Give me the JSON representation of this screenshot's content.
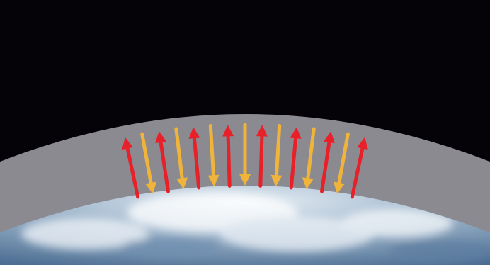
{
  "colors": {
    "space": "#050308",
    "atmosphere": "#8a8a90",
    "earth_light": "#e6eef4",
    "earth_mid": "#9fb6cc",
    "earth_dark": "#4d6f93",
    "upward_arrow": "#e8202a",
    "downward_arrow": "#f0b43a"
  },
  "arrows": [
    {
      "name": "arrow-up-1",
      "direction": "up",
      "color": "upward_arrow"
    },
    {
      "name": "arrow-down-1",
      "direction": "down",
      "color": "downward_arrow"
    },
    {
      "name": "arrow-up-2",
      "direction": "up",
      "color": "upward_arrow"
    },
    {
      "name": "arrow-down-2",
      "direction": "down",
      "color": "downward_arrow"
    },
    {
      "name": "arrow-up-3",
      "direction": "up",
      "color": "upward_arrow"
    },
    {
      "name": "arrow-down-3",
      "direction": "down",
      "color": "downward_arrow"
    },
    {
      "name": "arrow-up-4",
      "direction": "up",
      "color": "upward_arrow"
    },
    {
      "name": "arrow-down-4",
      "direction": "down",
      "color": "downward_arrow"
    },
    {
      "name": "arrow-up-5",
      "direction": "up",
      "color": "upward_arrow"
    },
    {
      "name": "arrow-down-5",
      "direction": "down",
      "color": "downward_arrow"
    },
    {
      "name": "arrow-up-6",
      "direction": "up",
      "color": "upward_arrow"
    },
    {
      "name": "arrow-down-6",
      "direction": "down",
      "color": "downward_arrow"
    },
    {
      "name": "arrow-up-7",
      "direction": "up",
      "color": "upward_arrow"
    },
    {
      "name": "arrow-down-7",
      "direction": "down",
      "color": "downward_arrow"
    },
    {
      "name": "arrow-up-8",
      "direction": "up",
      "color": "upward_arrow"
    }
  ]
}
